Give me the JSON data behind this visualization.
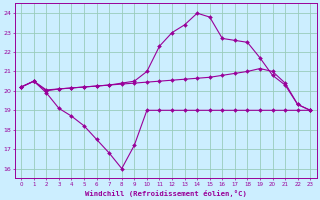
{
  "xlabel": "Windchill (Refroidissement éolien,°C)",
  "background_color": "#cceeff",
  "grid_color": "#99ccbb",
  "line_color": "#990099",
  "xlim": [
    -0.5,
    23.5
  ],
  "ylim": [
    15.5,
    24.5
  ],
  "yticks": [
    16,
    17,
    18,
    19,
    20,
    21,
    22,
    23,
    24
  ],
  "xticks": [
    0,
    1,
    2,
    3,
    4,
    5,
    6,
    7,
    8,
    9,
    10,
    11,
    12,
    13,
    14,
    15,
    16,
    17,
    18,
    19,
    20,
    21,
    22,
    23
  ],
  "line1_x": [
    0,
    1,
    2,
    3,
    4,
    5,
    6,
    7,
    8,
    9,
    10,
    11,
    12,
    13,
    14,
    15,
    16,
    17,
    18,
    19,
    20,
    21,
    22,
    23
  ],
  "line1_y": [
    20.2,
    20.5,
    19.9,
    19.1,
    18.7,
    18.2,
    17.5,
    16.8,
    16.0,
    17.2,
    19.0,
    19.0,
    19.0,
    19.0,
    19.0,
    19.0,
    19.0,
    19.0,
    19.0,
    19.0,
    19.0,
    19.0,
    19.0,
    19.0
  ],
  "line2_x": [
    0,
    1,
    2,
    3,
    4,
    5,
    6,
    7,
    8,
    9,
    10,
    11,
    12,
    13,
    14,
    15,
    16,
    17,
    18,
    19,
    20,
    21,
    22,
    23
  ],
  "line2_y": [
    20.2,
    20.5,
    20.0,
    20.1,
    20.15,
    20.2,
    20.25,
    20.3,
    20.35,
    20.4,
    20.45,
    20.5,
    20.55,
    20.6,
    20.65,
    20.7,
    20.8,
    20.9,
    21.0,
    21.15,
    21.0,
    20.4,
    19.3,
    19.0
  ],
  "line3_x": [
    0,
    1,
    2,
    3,
    4,
    5,
    6,
    7,
    8,
    9,
    10,
    11,
    12,
    13,
    14,
    15,
    16,
    17,
    18,
    19,
    20,
    21,
    22,
    23
  ],
  "line3_y": [
    20.2,
    20.5,
    20.05,
    20.1,
    20.15,
    20.2,
    20.25,
    20.3,
    20.4,
    20.5,
    21.0,
    22.3,
    23.0,
    23.4,
    24.0,
    23.8,
    22.7,
    22.6,
    22.5,
    21.7,
    20.8,
    20.3,
    19.3,
    19.0
  ]
}
